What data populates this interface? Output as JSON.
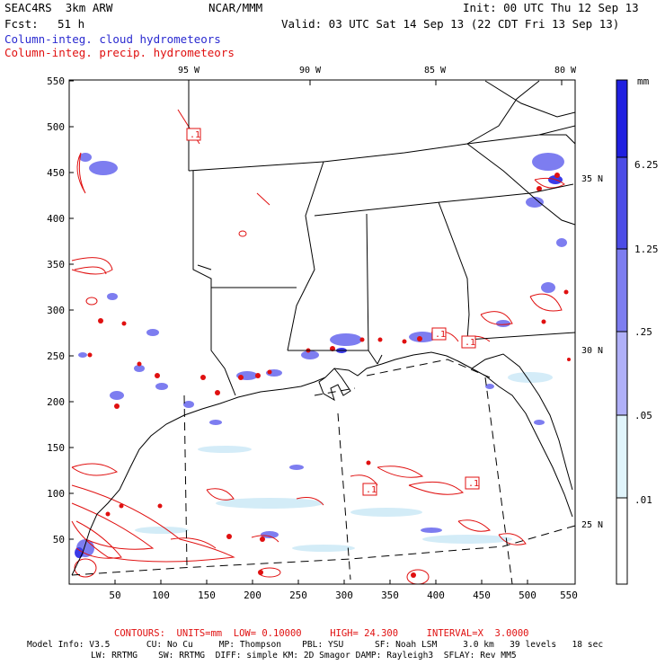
{
  "header": {
    "model": "SEAC4RS  3km ARW",
    "org": "NCAR/MMM",
    "init": "Init: 00 UTC Thu 12 Sep 13",
    "fcst_label": "Fcst:",
    "fcst_value": "51 h",
    "valid": "Valid: 03 UTC Sat 14 Sep 13 (22 CDT Fri 13 Sep 13)",
    "legend_cloud": "Column-integ. cloud hydrometeors",
    "legend_precip": "Column-integ. precip. hydrometeors"
  },
  "map": {
    "lon_labels": [
      "95 W",
      "90 W",
      "85 W",
      "80 W"
    ],
    "lat_labels": [
      "35 N",
      "30 N",
      "25 N"
    ],
    "y_ticks": [
      "550",
      "500",
      "450",
      "400",
      "350",
      "300",
      "250",
      "200",
      "150",
      "100",
      "50"
    ],
    "x_ticks": [
      "50",
      "100",
      "150",
      "200",
      "250",
      "300",
      "350",
      "400",
      "450",
      "500",
      "550"
    ],
    "contour_labels": [
      ".1",
      ".1",
      ".1",
      ".1",
      ".1"
    ],
    "grid_range": {
      "x": [
        0,
        550
      ],
      "y": [
        0,
        550
      ]
    }
  },
  "colorbar": {
    "unit": "mm",
    "labels": [
      "6.25",
      "1.25",
      ".25",
      ".05",
      ".01"
    ],
    "colors": [
      "#2020e0",
      "#4c4ce6",
      "#7d7df0",
      "#b0b0f8",
      "#e0f4fb",
      "#ffffff"
    ]
  },
  "footer": {
    "contours": "CONTOURS:  UNITS=mm  LOW= 0.10000     HIGH= 24.300     INTERVAL=X  3.0000",
    "info_line1": "Model Info: V3.5       CU: No Cu     MP: Thompson    PBL: YSU      SF: Noah LSM     3.0 km   39 levels   18 sec",
    "info_line2": "LW: RRTMG    SW: RRTMG  DIFF: simple KM: 2D Smagor DAMP: Rayleigh3  SFLAY: Rev MM5"
  }
}
